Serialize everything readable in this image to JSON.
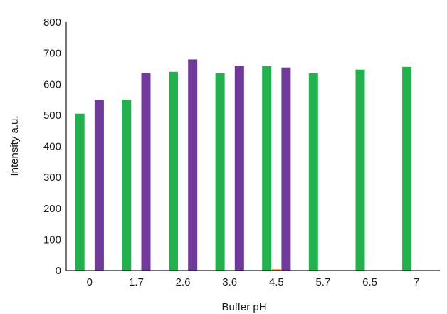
{
  "chart_data": {
    "type": "bar",
    "title": "",
    "xlabel": "Buffer pH",
    "ylabel": "Intensity a.u.",
    "categories": [
      "0",
      "1.7",
      "2.6",
      "3.6",
      "4.5",
      "5.7",
      "6.5",
      "7"
    ],
    "ylim": [
      0,
      800
    ],
    "yticks": [
      "0",
      "100",
      "200",
      "300",
      "400",
      "500",
      "600",
      "700",
      "800"
    ],
    "grid": false,
    "legend": "none",
    "series": [
      {
        "color": "#22b14c",
        "values": [
          505,
          550,
          640,
          635,
          658,
          635,
          647,
          656
        ]
      },
      {
        "color": "#f07f1e",
        "values": [
          0,
          0,
          0,
          0,
          4,
          0,
          0,
          0
        ]
      },
      {
        "color": "#6f3a9a",
        "values": [
          550,
          637,
          680,
          658,
          654,
          0,
          0,
          0
        ]
      }
    ]
  }
}
